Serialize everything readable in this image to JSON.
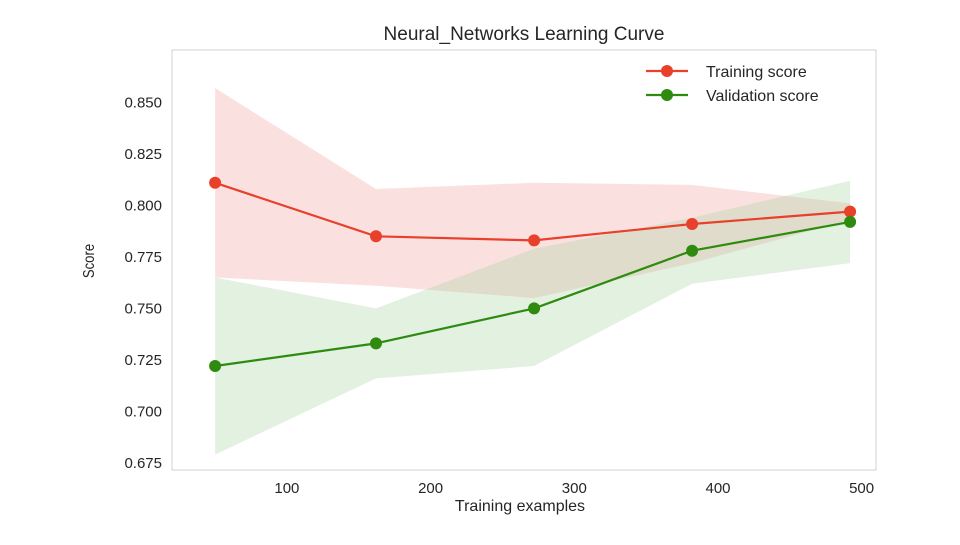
{
  "chart_data": {
    "type": "line",
    "title": "Neural_Networks Learning Curve",
    "xlabel": "Training examples",
    "ylabel": "Score",
    "xlim": [
      20,
      510
    ],
    "ylim": [
      0.6715,
      0.8755
    ],
    "grid": false,
    "legend_position": "top-right",
    "x_ticks": [
      {
        "value": 100,
        "label": "100"
      },
      {
        "value": 200,
        "label": "200"
      },
      {
        "value": 300,
        "label": "300"
      },
      {
        "value": 400,
        "label": "400"
      },
      {
        "value": 500,
        "label": "500"
      }
    ],
    "y_ticks": [
      {
        "value": 0.675,
        "label": "0.675"
      },
      {
        "value": 0.7,
        "label": "0.700"
      },
      {
        "value": 0.725,
        "label": "0.725"
      },
      {
        "value": 0.75,
        "label": "0.750"
      },
      {
        "value": 0.775,
        "label": "0.775"
      },
      {
        "value": 0.8,
        "label": "0.800"
      },
      {
        "value": 0.825,
        "label": "0.825"
      },
      {
        "value": 0.85,
        "label": "0.850"
      }
    ],
    "x": [
      50,
      162,
      272,
      382,
      492
    ],
    "series": [
      {
        "name": "Training score",
        "color": "#e8402a",
        "band_color": "#f4a0a0",
        "values": [
          0.811,
          0.785,
          0.783,
          0.791,
          0.797
        ],
        "upper": [
          0.857,
          0.808,
          0.811,
          0.81,
          0.801
        ],
        "lower": [
          0.765,
          0.761,
          0.755,
          0.772,
          0.793
        ]
      },
      {
        "name": "Validation score",
        "color": "#2e8b10",
        "band_color": "#a8d4a0",
        "values": [
          0.722,
          0.733,
          0.75,
          0.778,
          0.792
        ],
        "upper": [
          0.765,
          0.75,
          0.779,
          0.794,
          0.812
        ],
        "lower": [
          0.679,
          0.716,
          0.722,
          0.762,
          0.772
        ]
      }
    ]
  }
}
